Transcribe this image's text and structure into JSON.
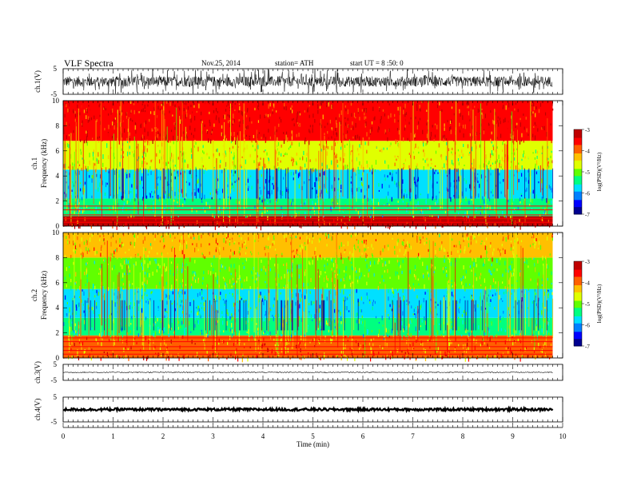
{
  "header": {
    "title": "VLF  Spectra",
    "date": "Nov.25, 2014",
    "station": "station= ATH",
    "start": "start  UT  =   8 :50: 0"
  },
  "colors": {
    "colormap": [
      "#000090",
      "#0000ff",
      "#0080ff",
      "#00e0ff",
      "#00ff80",
      "#60ff00",
      "#e0ff00",
      "#ffc000",
      "#ff6000",
      "#ff0000",
      "#c00000"
    ]
  },
  "chart_data": [
    {
      "type": "line",
      "panel": "ch1-waveform",
      "ylabel": "ch.1(V)",
      "ylim": [
        -5,
        5
      ],
      "yticks": [
        "5",
        "-5"
      ],
      "description_values": {
        "baseline": 0,
        "typical_range": [
          -2,
          2
        ]
      }
    },
    {
      "type": "heatmap",
      "panel": "ch1-spectrogram",
      "ylabel": "Frequency (kHz)",
      "ylabel_ch": "ch.1",
      "ylim": [
        0,
        10
      ],
      "yticks": [
        "0",
        "2",
        "4",
        "6",
        "8",
        "10"
      ],
      "colorbar": {
        "label": "log(PSD)(V²/Hz)",
        "range": [
          -7,
          -3
        ],
        "ticks": [
          "-3",
          "-4",
          "-5",
          "-6",
          "-7"
        ]
      },
      "bands": [
        {
          "from": 0,
          "to": 0.8,
          "level": -3.3
        },
        {
          "from": 0.8,
          "to": 2.2,
          "level": -5.3
        },
        {
          "from": 2.2,
          "to": 4.5,
          "level": -5.9
        },
        {
          "from": 4.5,
          "to": 6.8,
          "level": -4.6
        },
        {
          "from": 6.8,
          "to": 10,
          "level": -3.4
        }
      ]
    },
    {
      "type": "heatmap",
      "panel": "ch2-spectrogram",
      "ylabel": "Frequency (kHz)",
      "ylabel_ch": "ch.2",
      "ylim": [
        0,
        10
      ],
      "yticks": [
        "0",
        "2",
        "4",
        "6",
        "8",
        "10"
      ],
      "colorbar": {
        "label": "log(PSD)(V²/Hz)",
        "range": [
          -7,
          -3
        ],
        "ticks": [
          "-3",
          "-4",
          "-5",
          "-6",
          "-7"
        ]
      },
      "bands": [
        {
          "from": 0,
          "to": 1.8,
          "level": -4.0
        },
        {
          "from": 1.8,
          "to": 3.2,
          "level": -5.3
        },
        {
          "from": 3.2,
          "to": 5.5,
          "level": -5.6
        },
        {
          "from": 5.5,
          "to": 8,
          "level": -5.0
        },
        {
          "from": 8,
          "to": 10,
          "level": -4.4
        }
      ]
    },
    {
      "type": "line",
      "panel": "ch3-waveform",
      "ylabel": "ch.3(V)",
      "ylim": [
        -5,
        5
      ],
      "yticks": [
        "5",
        "-5"
      ],
      "description_values": {
        "baseline": 0,
        "typical_range": [
          -0.3,
          0.3
        ]
      }
    },
    {
      "type": "line",
      "panel": "ch4-waveform",
      "ylabel": "ch.4(V)",
      "ylim": [
        -5,
        5
      ],
      "yticks": [
        "5",
        "-5"
      ],
      "description_values": {
        "baseline": 0,
        "typical_range": [
          -0.5,
          0.5
        ]
      }
    }
  ],
  "xaxis": {
    "xlabel": "Time  (min)",
    "xlim": [
      0,
      10
    ],
    "ticks": [
      "0",
      "1",
      "2",
      "3",
      "4",
      "5",
      "6",
      "7",
      "8",
      "9",
      "10"
    ],
    "data_end": 9.8
  }
}
